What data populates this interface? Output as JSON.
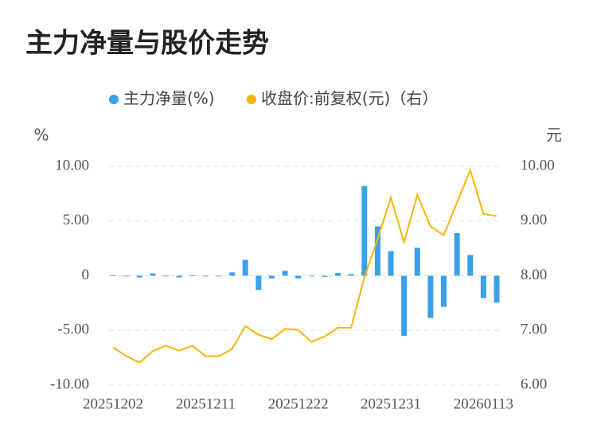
{
  "chart_data": {
    "type": "bar+line",
    "title": "主力净量与股价走势",
    "y_label": "%",
    "y2_label": "元",
    "categories": [
      "20251202",
      null,
      null,
      null,
      null,
      null,
      null,
      "20251211",
      null,
      null,
      null,
      null,
      null,
      null,
      "20251222",
      null,
      null,
      null,
      null,
      null,
      null,
      "20251231",
      null,
      null,
      null,
      null,
      null,
      null,
      "20260113",
      null
    ],
    "series": [
      {
        "name": "主力净量(%)",
        "type": "bar",
        "color": "#3ba0ea",
        "values": [
          0.05,
          0,
          -0.15,
          0.2,
          -0.05,
          -0.15,
          0.05,
          0,
          -0.05,
          0.3,
          1.45,
          -1.3,
          -0.25,
          0.45,
          -0.25,
          -0.05,
          -0.1,
          0.25,
          0.15,
          8.2,
          4.5,
          2.25,
          -5.5,
          2.55,
          -3.85,
          -2.85,
          3.9,
          1.9,
          -2.05,
          -2.45
        ]
      },
      {
        "name": "收盘价:前复权(元)（右）",
        "type": "line",
        "axis": "y2",
        "color": "#f5b50a",
        "values": [
          6.69,
          6.53,
          6.41,
          6.62,
          6.72,
          6.63,
          6.72,
          6.53,
          6.53,
          6.66,
          7.08,
          6.92,
          6.84,
          7.03,
          7.01,
          6.79,
          6.89,
          7.05,
          7.05,
          7.97,
          8.67,
          9.43,
          8.61,
          9.48,
          8.9,
          8.74,
          9.34,
          9.93,
          9.13,
          9.09
        ]
      }
    ],
    "ylim": [
      -10,
      10
    ],
    "yticks": [
      {
        "value": 10,
        "label": "10.00"
      },
      {
        "value": 5,
        "label": "5.00"
      },
      0,
      {
        "value": -5,
        "label": "-5.00"
      },
      {
        "value": -10,
        "label": "-10.00"
      }
    ],
    "y2lim": [
      6,
      10
    ],
    "y2ticks": [
      {
        "value": 10,
        "label": "10.00"
      },
      {
        "value": 9,
        "label": "9.00"
      },
      {
        "value": 8,
        "label": "8.00"
      },
      {
        "value": 7,
        "label": "7.00"
      },
      {
        "value": 6,
        "label": "6.00"
      }
    ],
    "grid": true
  }
}
